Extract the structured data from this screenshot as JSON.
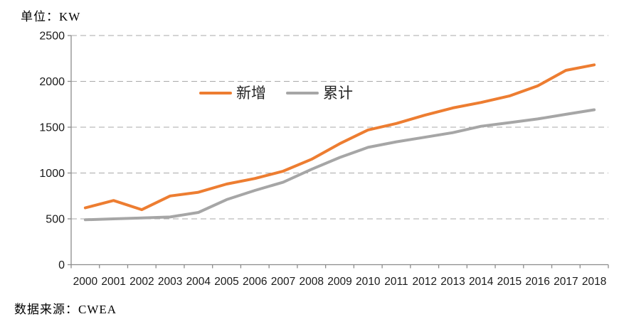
{
  "title": {
    "unit_label": "单位：KW"
  },
  "source": {
    "label": "数据来源：CWEA"
  },
  "colors": {
    "accent_orange": "#ED7D31",
    "accent_gray": "#A6A6A6",
    "gridline": "#A9A9A9",
    "axis": "#8C8C8C",
    "tick_text": "#1A1A1A"
  },
  "chart_data": {
    "type": "line",
    "title": "",
    "xlabel": "",
    "ylabel": "单位：KW",
    "x": [
      "2000",
      "2001",
      "2002",
      "2003",
      "2004",
      "2005",
      "2006",
      "2007",
      "2008",
      "2009",
      "2010",
      "2011",
      "2012",
      "2013",
      "2014",
      "2015",
      "2016",
      "2017",
      "2018"
    ],
    "series": [
      {
        "key": "new-installed",
        "name": "新增",
        "color": "#ED7D31",
        "values": [
          620,
          700,
          600,
          750,
          790,
          880,
          940,
          1020,
          1150,
          1320,
          1470,
          1540,
          1630,
          1710,
          1770,
          1840,
          1950,
          2120,
          2180
        ]
      },
      {
        "key": "cumulative",
        "name": "累计",
        "color": "#A6A6A6",
        "values": [
          490,
          500,
          510,
          520,
          570,
          710,
          810,
          900,
          1040,
          1170,
          1280,
          1340,
          1390,
          1440,
          1510,
          1550,
          1590,
          1640,
          1690
        ]
      }
    ],
    "ylim": [
      0,
      2500
    ],
    "yticks": [
      0,
      500,
      1000,
      1500,
      2000,
      2500
    ],
    "grid": "horizontal-dashed",
    "legend_position": "inside-top-center",
    "unit": "KW",
    "source": "CWEA"
  }
}
